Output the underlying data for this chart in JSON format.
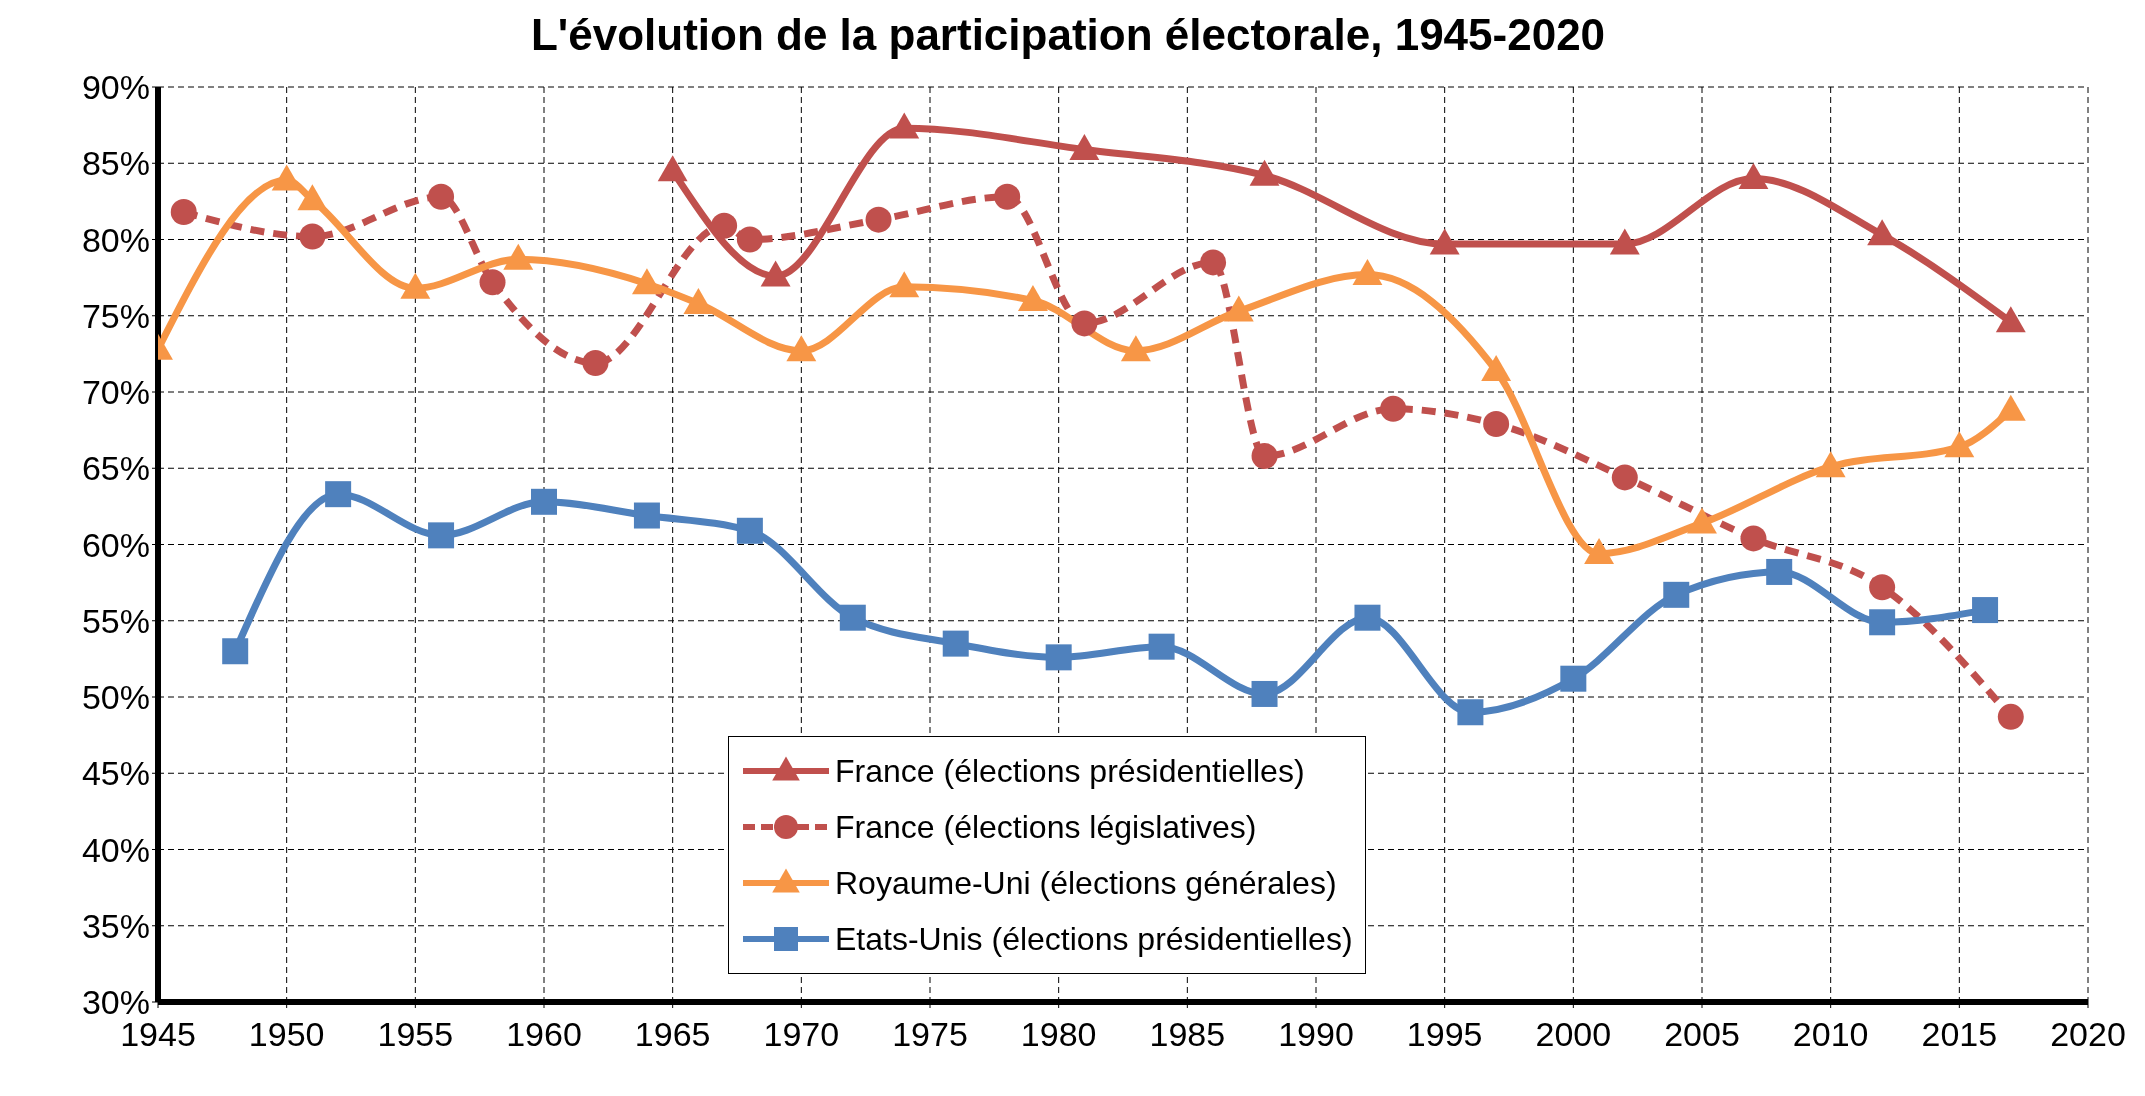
{
  "chart_data": {
    "type": "line",
    "title": "L'évolution de la participation électorale, 1945-2020",
    "xlim": [
      1945,
      2020
    ],
    "xticks": [
      1945,
      1950,
      1955,
      1960,
      1965,
      1970,
      1975,
      1980,
      1985,
      1990,
      1995,
      2000,
      2005,
      2010,
      2015,
      2020
    ],
    "ylim": [
      30,
      90
    ],
    "yticks": [
      {
        "value": 30,
        "label": "30%"
      },
      {
        "value": 35,
        "label": "35%"
      },
      {
        "value": 40,
        "label": "40%"
      },
      {
        "value": 45,
        "label": "45%"
      },
      {
        "value": 50,
        "label": "50%"
      },
      {
        "value": 55,
        "label": "55%"
      },
      {
        "value": 60,
        "label": "60%"
      },
      {
        "value": 65,
        "label": "65%"
      },
      {
        "value": 70,
        "label": "70%"
      },
      {
        "value": 75,
        "label": "75%"
      },
      {
        "value": 80,
        "label": "80%"
      },
      {
        "value": 85,
        "label": "85%"
      },
      {
        "value": 90,
        "label": "90%"
      }
    ],
    "grid": true,
    "legend": "bottom",
    "series": [
      {
        "name": "France (élections présidentielles)",
        "color": "#c0504d",
        "marker": "triangle",
        "line_style": "solid",
        "x": [
          1965,
          1969,
          1974,
          1981,
          1988,
          1995,
          2002,
          2007,
          2012,
          2017
        ],
        "values": [
          84.5,
          77.6,
          87.3,
          85.9,
          84.2,
          79.7,
          79.7,
          84.0,
          80.3,
          74.6
        ]
      },
      {
        "name": "France (élections législatives)",
        "color": "#c0504d",
        "marker": "circle",
        "line_style": "dashed",
        "x": [
          1946,
          1951,
          1956,
          1958,
          1962,
          1967,
          1968,
          1973,
          1978,
          1981,
          1986,
          1988,
          1993,
          1997,
          2002,
          2007,
          2012,
          2017
        ],
        "values": [
          81.8,
          80.2,
          82.8,
          77.2,
          71.9,
          80.9,
          80.0,
          81.3,
          82.8,
          74.5,
          78.5,
          65.8,
          68.9,
          67.9,
          64.4,
          60.4,
          57.2,
          48.7
        ]
      },
      {
        "name": "Royaume-Uni (élections générales)",
        "color": "#f79646",
        "marker": "triangle",
        "line_style": "solid",
        "x": [
          1945,
          1950,
          1951,
          1955,
          1959,
          1964,
          1966,
          1970,
          1974,
          1979,
          1983,
          1987,
          1992,
          1997,
          2001,
          2005,
          2010,
          2015,
          2017
        ],
        "values": [
          72.8,
          83.9,
          82.6,
          76.8,
          78.7,
          77.1,
          75.8,
          72.7,
          76.9,
          76.0,
          72.7,
          75.3,
          77.7,
          71.4,
          59.4,
          61.4,
          65.1,
          66.4,
          68.8
        ]
      },
      {
        "name": "Etats-Unis (élections présidentielles)",
        "color": "#4f81bd",
        "marker": "square",
        "line_style": "solid",
        "x": [
          1948,
          1952,
          1956,
          1960,
          1964,
          1968,
          1972,
          1976,
          1980,
          1984,
          1988,
          1992,
          1996,
          2000,
          2004,
          2008,
          2012,
          2016
        ],
        "values": [
          53.0,
          63.3,
          60.6,
          62.8,
          61.9,
          60.9,
          55.2,
          53.5,
          52.6,
          53.3,
          50.2,
          55.2,
          49.0,
          51.2,
          56.7,
          58.2,
          54.9,
          55.7
        ]
      }
    ]
  }
}
